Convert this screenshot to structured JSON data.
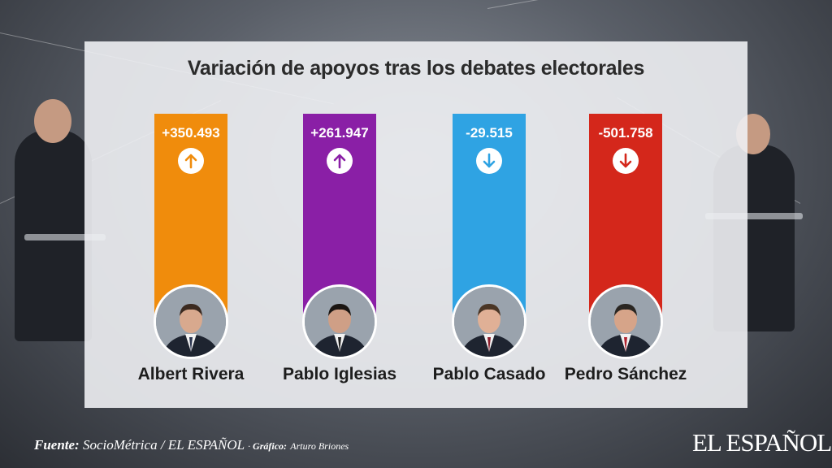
{
  "chart_data": {
    "type": "bar",
    "title": "Variación de apoyos tras los debates electorales",
    "categories": [
      "Albert Rivera",
      "Pablo Iglesias",
      "Pablo Casado",
      "Pedro Sánchez"
    ],
    "values": [
      350493,
      261947,
      -29515,
      -501758
    ],
    "labels": [
      "+350.493",
      "+261.947",
      "-29.515",
      "-501.758"
    ],
    "directions": [
      "up",
      "up",
      "down",
      "down"
    ],
    "colors": [
      "#f08c0c",
      "#8a1fa6",
      "#2fa3e3",
      "#d4271b"
    ]
  },
  "footer": {
    "source_label": "Fuente:",
    "source_text": "SocioMétrica / EL ESPAÑOL",
    "graphic_label": "Gráfico:",
    "graphic_text": "Arturo Briones"
  },
  "brand": {
    "logo_text": "EL ESPAÑOL"
  }
}
